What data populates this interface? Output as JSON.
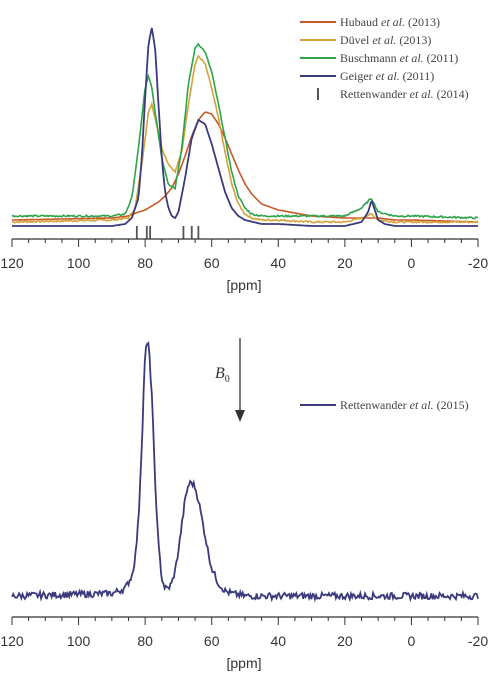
{
  "chart_data": [
    {
      "type": "line",
      "xlabel": "[ppm]",
      "xlim": [
        120,
        -20
      ],
      "xticks": [
        "120",
        "100",
        "80",
        "60",
        "40",
        "20",
        "0",
        "-20"
      ],
      "grid": false,
      "legend_position": "top-right",
      "series": [
        {
          "name": "Hubaud et al. (2013)",
          "color": "#c8582a",
          "x": [
            120,
            90,
            85,
            82,
            80,
            78,
            76,
            74,
            72,
            70,
            68,
            66,
            64,
            62,
            60,
            58,
            56,
            54,
            52,
            50,
            48,
            45,
            40,
            30,
            20,
            15,
            12,
            10,
            5,
            0,
            -20
          ],
          "values": [
            0.04,
            0.05,
            0.06,
            0.08,
            0.09,
            0.11,
            0.13,
            0.16,
            0.2,
            0.27,
            0.36,
            0.46,
            0.54,
            0.58,
            0.57,
            0.52,
            0.45,
            0.37,
            0.29,
            0.22,
            0.17,
            0.12,
            0.09,
            0.06,
            0.05,
            0.05,
            0.05,
            0.05,
            0.04,
            0.04,
            0.03
          ]
        },
        {
          "name": "Düvel et al. (2013)",
          "color": "#d4a23a",
          "x": [
            120,
            90,
            85,
            83,
            81,
            79,
            78,
            77,
            75,
            73,
            71,
            69,
            67,
            65,
            64,
            62,
            60,
            58,
            56,
            54,
            52,
            50,
            48,
            45,
            40,
            30,
            20,
            15,
            12,
            10,
            5,
            0,
            -20
          ],
          "values": [
            0.03,
            0.04,
            0.05,
            0.1,
            0.32,
            0.58,
            0.62,
            0.55,
            0.4,
            0.32,
            0.28,
            0.38,
            0.62,
            0.82,
            0.86,
            0.82,
            0.7,
            0.55,
            0.38,
            0.22,
            0.12,
            0.07,
            0.05,
            0.04,
            0.04,
            0.03,
            0.03,
            0.05,
            0.07,
            0.04,
            0.03,
            0.03,
            0.03
          ]
        },
        {
          "name": "Buschmann et al. (2011)",
          "color": "#2fa34a",
          "x": [
            120,
            90,
            86,
            84,
            82,
            80,
            79,
            78,
            77,
            75,
            73,
            71,
            69,
            67,
            65,
            64,
            62,
            60,
            58,
            56,
            54,
            52,
            50,
            48,
            45,
            40,
            30,
            20,
            15,
            12,
            10,
            5,
            0,
            -20
          ],
          "values": [
            0.06,
            0.06,
            0.07,
            0.15,
            0.4,
            0.7,
            0.76,
            0.7,
            0.58,
            0.35,
            0.22,
            0.2,
            0.4,
            0.72,
            0.9,
            0.92,
            0.88,
            0.78,
            0.62,
            0.45,
            0.28,
            0.16,
            0.1,
            0.07,
            0.06,
            0.06,
            0.06,
            0.06,
            0.1,
            0.15,
            0.08,
            0.06,
            0.06,
            0.05
          ]
        },
        {
          "name": "Geiger et al. (2011)",
          "color": "#3b3a7c",
          "x": [
            120,
            90,
            86,
            84,
            82,
            81,
            80,
            79,
            78,
            77,
            76,
            75,
            74,
            73,
            72,
            71,
            70,
            68,
            66,
            64,
            62,
            60,
            58,
            56,
            54,
            52,
            50,
            45,
            40,
            30,
            20,
            15,
            13,
            12,
            11,
            10,
            8,
            5,
            0,
            -20
          ],
          "values": [
            0.01,
            0.01,
            0.02,
            0.05,
            0.15,
            0.35,
            0.65,
            0.92,
            1.0,
            0.9,
            0.62,
            0.35,
            0.18,
            0.1,
            0.06,
            0.05,
            0.08,
            0.25,
            0.45,
            0.54,
            0.52,
            0.42,
            0.3,
            0.18,
            0.1,
            0.06,
            0.04,
            0.02,
            0.02,
            0.01,
            0.01,
            0.03,
            0.08,
            0.14,
            0.09,
            0.04,
            0.02,
            0.01,
            0.01,
            0.01
          ]
        }
      ],
      "stick_markers": {
        "name": "Rettenwander et al. (2014)",
        "color": "#555555",
        "x": [
          82.5,
          79.5,
          78.5,
          68.5,
          66,
          64
        ]
      }
    },
    {
      "type": "line",
      "xlabel": "[ppm]",
      "xlim": [
        120,
        -20
      ],
      "xticks": [
        "120",
        "100",
        "80",
        "60",
        "40",
        "20",
        "0",
        "-20"
      ],
      "grid": false,
      "legend_position": "top-right",
      "annotation": {
        "text": "B",
        "subscript": "0"
      },
      "series": [
        {
          "name": "Rettenwander et al. (2015)",
          "color": "#3b3a7c",
          "x": [
            120,
            90,
            86,
            84,
            83,
            82,
            81,
            80,
            79,
            78,
            77,
            76,
            75,
            74,
            73,
            72,
            71,
            70,
            69,
            68,
            67,
            66,
            65,
            64,
            63,
            62,
            61,
            60,
            58,
            56,
            54,
            50,
            45,
            40,
            30,
            20,
            10,
            0,
            -20
          ],
          "values": [
            0.0,
            0.01,
            0.03,
            0.08,
            0.15,
            0.3,
            0.6,
            0.97,
            1.0,
            0.8,
            0.45,
            0.2,
            0.07,
            0.03,
            0.03,
            0.05,
            0.1,
            0.18,
            0.28,
            0.38,
            0.44,
            0.45,
            0.43,
            0.38,
            0.31,
            0.24,
            0.17,
            0.11,
            0.05,
            0.02,
            0.01,
            0.0,
            0.0,
            0.0,
            0.0,
            0.0,
            0.0,
            0.0,
            0.0
          ]
        }
      ]
    }
  ]
}
